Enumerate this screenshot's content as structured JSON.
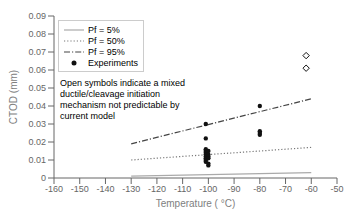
{
  "chart_data": {
    "type": "scatter",
    "xlabel": "Temperature ( °C)",
    "ylabel": "CTOD (mm)",
    "xlim": [
      -160,
      -50
    ],
    "ylim": [
      0,
      0.09
    ],
    "xticks": [
      -160,
      -150,
      -140,
      -130,
      -120,
      -110,
      -100,
      -90,
      -80,
      -70,
      -60,
      -50
    ],
    "yticks": [
      0,
      0.01,
      0.02,
      0.03,
      0.04,
      0.05,
      0.06,
      0.07,
      0.08,
      0.09
    ],
    "grid": false,
    "legend": "upper left",
    "annotation": "Open symbols indicate a mixed\nductile/cleavage initiation\nmechanism not predictable by\ncurrent model",
    "series": [
      {
        "name": "Pf = 5%",
        "type": "line",
        "color": "#aaaaaa",
        "line_style": "solid",
        "x": [
          -130,
          -60
        ],
        "values": [
          0.001,
          0.003
        ]
      },
      {
        "name": "Pf = 50%",
        "type": "line",
        "color": "#777777",
        "line_style": "dotted",
        "x": [
          -130,
          -60
        ],
        "values": [
          0.01,
          0.017
        ]
      },
      {
        "name": "Pf = 95%",
        "type": "line",
        "color": "#444444",
        "line_style": "dashdot",
        "x": [
          -130,
          -60
        ],
        "values": [
          0.019,
          0.044
        ]
      },
      {
        "name": "Experiments",
        "type": "scatter",
        "color": "#111111",
        "marker": "circle",
        "x": [
          -101,
          -101,
          -101,
          -101,
          -101,
          -101,
          -101,
          -101,
          -101,
          -101,
          -100,
          -100,
          -100,
          -100,
          -100,
          -100,
          -80,
          -80,
          -80,
          -80
        ],
        "values": [
          0.03,
          0.022,
          0.016,
          0.015,
          0.014,
          0.013,
          0.012,
          0.011,
          0.01,
          0.009,
          0.015,
          0.013,
          0.012,
          0.011,
          0.008,
          0.007,
          0.04,
          0.026,
          0.025,
          0.024
        ]
      },
      {
        "type": "scatter",
        "color": "#111111",
        "marker": "open_diamond",
        "x": [
          -62,
          -62
        ],
        "values": [
          0.068,
          0.061
        ]
      }
    ]
  }
}
